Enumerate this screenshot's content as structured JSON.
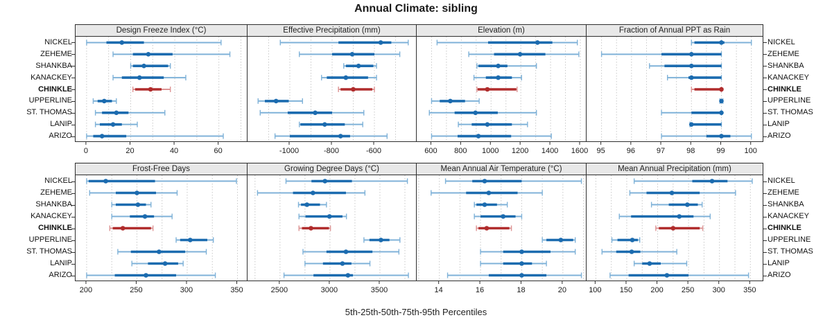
{
  "title": "Annual Climate: sibling",
  "caption": "5th-25th-50th-75th-95th Percentiles",
  "sites": [
    "NICKEL",
    "ZEHEME",
    "SHANKBA",
    "KANACKEY",
    "CHINKLE",
    "UPPERLINE",
    "ST. THOMAS",
    "LANIP",
    "ARIZO"
  ],
  "highlight_site": "CHINKLE",
  "colors": {
    "blue_dark": "#1b6baf",
    "blue_light": "#7fb2d8",
    "red_dark": "#b02c2c",
    "red_light": "#dd9494",
    "grid": "#c8c8c8",
    "border": "#2e2e2e",
    "header_bg": "#e8e8e8"
  },
  "chart_data": {
    "type": "scatter",
    "subtype": "percentile-dotplot",
    "percentiles": [
      "5th",
      "25th",
      "50th",
      "75th",
      "95th"
    ],
    "panels": [
      {
        "slug": "design-freeze-index",
        "title": "Design Freeze Index (°C)",
        "domain": [
          -5,
          73
        ],
        "ticks": [
          0,
          20,
          40,
          60
        ],
        "grid_step": 10,
        "series": [
          {
            "site": "NICKEL",
            "p": [
              0,
              9,
              16,
              26,
              61
            ]
          },
          {
            "site": "ZEHEME",
            "p": [
              12,
              21,
              28,
              39,
              65
            ]
          },
          {
            "site": "SHANKBA",
            "p": [
              20,
              21,
              26,
              37,
              38
            ]
          },
          {
            "site": "KANACKEY",
            "p": [
              12,
              16,
              24,
              35,
              45
            ]
          },
          {
            "site": "CHINKLE",
            "p": [
              21,
              22,
              29,
              34,
              38
            ]
          },
          {
            "site": "UPPERLINE",
            "p": [
              3,
              5,
              8,
              11.5,
              13.5
            ]
          },
          {
            "site": "ST. THOMAS",
            "p": [
              4,
              7,
              13.5,
              19,
              35.5
            ]
          },
          {
            "site": "LANIP",
            "p": [
              4,
              6,
              12,
              16,
              23
            ]
          },
          {
            "site": "ARIZO",
            "p": [
              0,
              3,
              7,
              18,
              62
            ]
          }
        ]
      },
      {
        "slug": "effective-precipitation",
        "title": "Effective Precipitation (mm)",
        "domain": [
          -1200,
          -400
        ],
        "ticks": [
          -1000,
          -800,
          -600
        ],
        "grid_step": 100,
        "series": [
          {
            "site": "NICKEL",
            "p": [
              -1045,
              -770,
              -570,
              -520,
              -440
            ]
          },
          {
            "site": "ZEHEME",
            "p": [
              -955,
              -800,
              -705,
              -600,
              -480
            ]
          },
          {
            "site": "SHANKBA",
            "p": [
              -745,
              -735,
              -675,
              -605,
              -590
            ]
          },
          {
            "site": "KANACKEY",
            "p": [
              -850,
              -825,
              -735,
              -630,
              -590
            ]
          },
          {
            "site": "CHINKLE",
            "p": [
              -770,
              -760,
              -700,
              -610,
              -600
            ]
          },
          {
            "site": "UPPERLINE",
            "p": [
              -1150,
              -1118,
              -1065,
              -1005,
              -940
            ]
          },
          {
            "site": "ST. THOMAS",
            "p": [
              -1140,
              -1010,
              -880,
              -800,
              -650
            ]
          },
          {
            "site": "LANIP",
            "p": [
              -955,
              -950,
              -835,
              -740,
              -655
            ]
          },
          {
            "site": "ARIZO",
            "p": [
              -1070,
              -1000,
              -760,
              -715,
              -540
            ]
          }
        ]
      },
      {
        "slug": "elevation",
        "title": "Elevation (m)",
        "domain": [
          500,
          1642
        ],
        "ticks": [
          600,
          800,
          1000,
          1200,
          1400,
          1600
        ],
        "grid_step": 100,
        "series": [
          {
            "site": "NICKEL",
            "p": [
              637,
              980,
              1312,
              1412,
              1580
            ]
          },
          {
            "site": "ZEHEME",
            "p": [
              850,
              1020,
              1195,
              1365,
              1590
            ]
          },
          {
            "site": "SHANKBA",
            "p": [
              905,
              915,
              1048,
              1110,
              1305
            ]
          },
          {
            "site": "KANACKEY",
            "p": [
              885,
              965,
              1048,
              1140,
              1205
            ]
          },
          {
            "site": "CHINKLE",
            "p": [
              905,
              910,
              975,
              1170,
              1175
            ]
          },
          {
            "site": "UPPERLINE",
            "p": [
              600,
              655,
              726,
              825,
              920
            ]
          },
          {
            "site": "ST. THOMAS",
            "p": [
              585,
              755,
              895,
              1045,
              1305
            ]
          },
          {
            "site": "LANIP",
            "p": [
              780,
              870,
              975,
              1140,
              1245
            ]
          },
          {
            "site": "ARIZO",
            "p": [
              600,
              775,
              915,
              1135,
              1405
            ]
          }
        ]
      },
      {
        "slug": "fraction-ppt-rain",
        "title": "Fraction of Annual PPT as Rain",
        "domain": [
          94.5,
          100.4
        ],
        "ticks": [
          95,
          96,
          97,
          98,
          99,
          100
        ],
        "grid_step": 0.5,
        "series": [
          {
            "site": "NICKEL",
            "p": [
              98,
              98.1,
              99,
              99.1,
              100
            ]
          },
          {
            "site": "ZEHEME",
            "p": [
              95,
              97,
              98,
              99,
              99
            ]
          },
          {
            "site": "SHANKBA",
            "p": [
              96.6,
              97.1,
              98,
              99,
              99
            ]
          },
          {
            "site": "KANACKEY",
            "p": [
              97.2,
              97.9,
              98,
              99,
              99
            ]
          },
          {
            "site": "CHINKLE",
            "p": [
              98,
              98.1,
              99,
              99,
              99
            ]
          },
          {
            "site": "UPPERLINE",
            "p": [
              98.95,
              99,
              99,
              99,
              99.05
            ]
          },
          {
            "site": "ST. THOMAS",
            "p": [
              97,
              98,
              99,
              99,
              99
            ]
          },
          {
            "site": "LANIP",
            "p": [
              97.95,
              98,
              98,
              99,
              99
            ]
          },
          {
            "site": "ARIZO",
            "p": [
              97,
              98.5,
              99,
              99.3,
              100
            ]
          }
        ]
      },
      {
        "slug": "frost-free-days",
        "title": "Frost-Free Days",
        "domain": [
          189,
          360
        ],
        "ticks": [
          200,
          250,
          300,
          350
        ],
        "grid_step": 25,
        "series": [
          {
            "site": "NICKEL",
            "p": [
              200,
              202,
              219,
              268,
              349
            ]
          },
          {
            "site": "ZEHEME",
            "p": [
              203,
              229,
              250,
              269,
              290
            ]
          },
          {
            "site": "SHANKBA",
            "p": [
              225,
              229,
              251,
              259,
              264
            ]
          },
          {
            "site": "KANACKEY",
            "p": [
              225,
              243,
              258,
              267,
              285
            ]
          },
          {
            "site": "CHINKLE",
            "p": [
              223,
              226,
              236,
              264,
              266
            ]
          },
          {
            "site": "UPPERLINE",
            "p": [
              289,
              293,
              303,
              320,
              326
            ]
          },
          {
            "site": "ST. THOMAS",
            "p": [
              231,
              244,
              272,
              298,
              319
            ]
          },
          {
            "site": "LANIP",
            "p": [
              245,
              261,
              278,
              291,
              296
            ]
          },
          {
            "site": "ARIZO",
            "p": [
              200,
              228,
              259,
              289,
              328
            ]
          }
        ]
      },
      {
        "slug": "growing-degree-days",
        "title": "Growing Degree Days (°C)",
        "domain": [
          2175,
          3868
        ],
        "ticks": [
          2500,
          3000,
          3500
        ],
        "grid_step": 250,
        "series": [
          {
            "site": "NICKEL",
            "p": [
              2560,
              2815,
              2950,
              3220,
              3775
            ]
          },
          {
            "site": "ZEHEME",
            "p": [
              2275,
              2630,
              2830,
              3160,
              3350
            ]
          },
          {
            "site": "SHANKBA",
            "p": [
              2685,
              2710,
              2770,
              2900,
              2965
            ]
          },
          {
            "site": "KANACKEY",
            "p": [
              2690,
              2755,
              2995,
              3125,
              3165
            ]
          },
          {
            "site": "CHINKLE",
            "p": [
              2690,
              2720,
              2810,
              2990,
              3005
            ]
          },
          {
            "site": "UPPERLINE",
            "p": [
              3340,
              3395,
              3510,
              3595,
              3700
            ]
          },
          {
            "site": "ST. THOMAS",
            "p": [
              2730,
              2965,
              3160,
              3425,
              3690
            ]
          },
          {
            "site": "LANIP",
            "p": [
              2750,
              2930,
              3125,
              3215,
              3400
            ]
          },
          {
            "site": "ARIZO",
            "p": [
              2540,
              2835,
              3180,
              3230,
              3785
            ]
          }
        ]
      },
      {
        "slug": "mean-annual-air-temperature",
        "title": "Mean Annual Air Temperature (°C)",
        "domain": [
          12.9,
          21.15
        ],
        "ticks": [
          14,
          16,
          18,
          20
        ],
        "grid_step": 1,
        "series": [
          {
            "site": "NICKEL",
            "p": [
              14.3,
              15.6,
              16.2,
              18.0,
              20.9
            ]
          },
          {
            "site": "ZEHEME",
            "p": [
              13.6,
              15.3,
              16.4,
              17.8,
              19.0
            ]
          },
          {
            "site": "SHANKBA",
            "p": [
              15.7,
              15.8,
              16.2,
              16.8,
              17.3
            ]
          },
          {
            "site": "KANACKEY",
            "p": [
              15.7,
              16.0,
              17.1,
              17.7,
              18.0
            ]
          },
          {
            "site": "CHINKLE",
            "p": [
              15.8,
              15.9,
              16.3,
              17.4,
              17.5
            ]
          },
          {
            "site": "UPPERLINE",
            "p": [
              19.0,
              19.2,
              19.9,
              20.5,
              20.6
            ]
          },
          {
            "site": "ST. THOMAS",
            "p": [
              16.0,
              17.1,
              18.0,
              19.4,
              20.6
            ]
          },
          {
            "site": "LANIP",
            "p": [
              16.0,
              17.1,
              18.0,
              18.5,
              19.2
            ]
          },
          {
            "site": "ARIZO",
            "p": [
              14.4,
              16.4,
              18.0,
              19.2,
              20.9
            ]
          }
        ]
      },
      {
        "slug": "mean-annual-precipitation",
        "title": "Mean Annual Precipitation (mm)",
        "domain": [
          85,
          371
        ],
        "ticks": [
          100,
          150,
          200,
          250,
          300,
          350
        ],
        "grid_step": 25,
        "series": [
          {
            "site": "NICKEL",
            "p": [
              162,
              256,
              288,
              313,
              353
            ]
          },
          {
            "site": "ZEHEME",
            "p": [
              155,
              182,
              223,
              268,
              326
            ]
          },
          {
            "site": "SHANKBA",
            "p": [
              190,
              218,
              248,
              265,
              272
            ]
          },
          {
            "site": "KANACKEY",
            "p": [
              138,
              157,
              235,
              258,
              285
            ]
          },
          {
            "site": "CHINKLE",
            "p": [
              197,
              202,
              225,
              268,
              273
            ]
          },
          {
            "site": "UPPERLINE",
            "p": [
              126,
              135,
              159,
              168,
              171
            ]
          },
          {
            "site": "ST. THOMAS",
            "p": [
              110,
              133,
              158,
              172,
              231
            ]
          },
          {
            "site": "LANIP",
            "p": [
              162,
              175,
              187,
              205,
              247
            ]
          },
          {
            "site": "ARIZO",
            "p": [
              123,
              153,
              215,
              250,
              347
            ]
          }
        ]
      }
    ]
  }
}
